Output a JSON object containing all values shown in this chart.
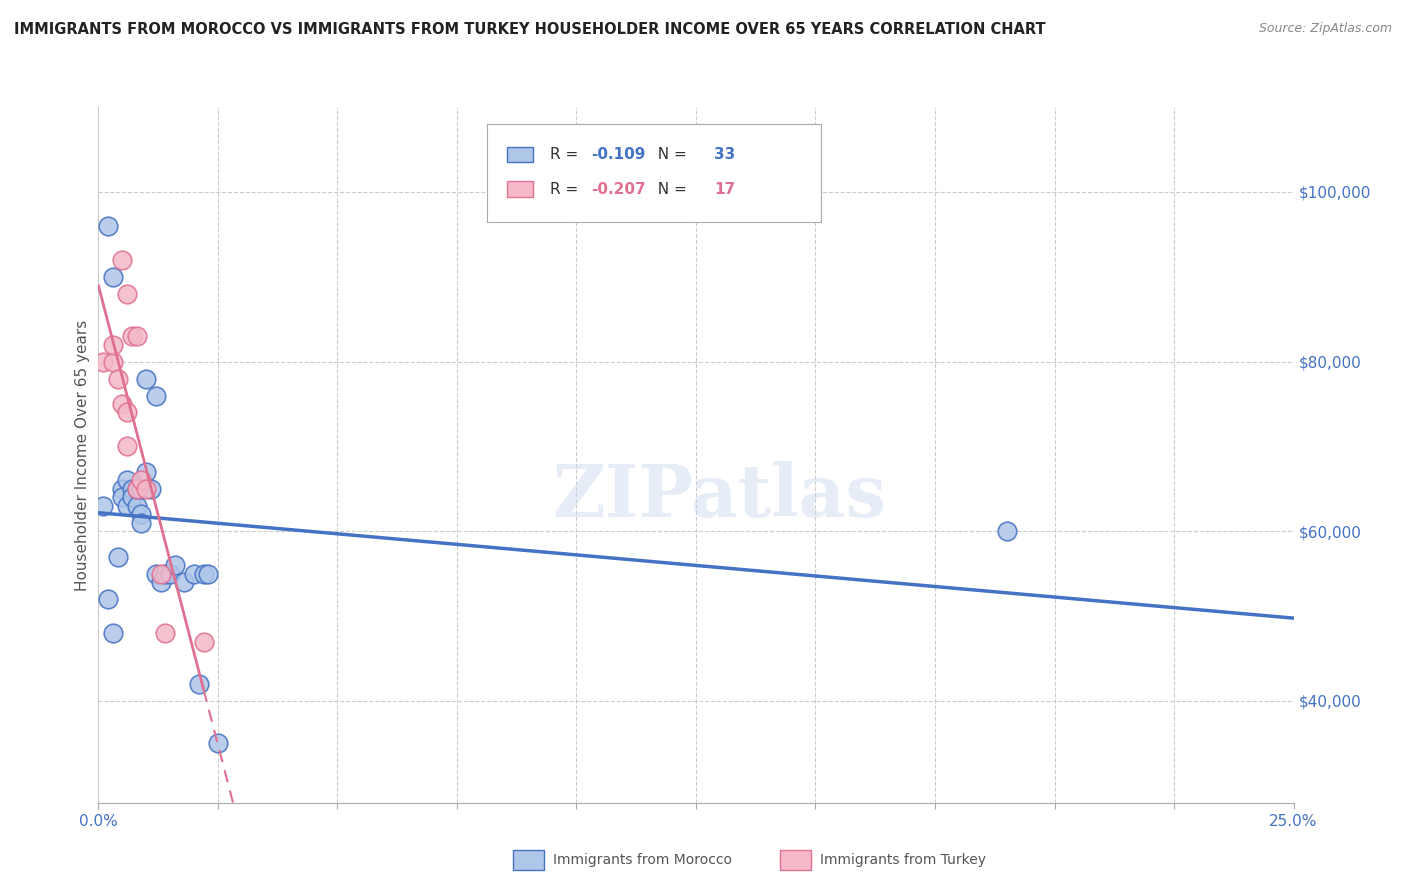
{
  "title": "IMMIGRANTS FROM MOROCCO VS IMMIGRANTS FROM TURKEY HOUSEHOLDER INCOME OVER 65 YEARS CORRELATION CHART",
  "source": "Source: ZipAtlas.com",
  "ylabel": "Householder Income Over 65 years",
  "yticks": [
    40000,
    60000,
    80000,
    100000
  ],
  "ytick_labels": [
    "$40,000",
    "$60,000",
    "$80,000",
    "$100,000"
  ],
  "xlim": [
    0.0,
    0.25
  ],
  "ylim": [
    28000,
    110000
  ],
  "legend_label1": "Immigrants from Morocco",
  "legend_label2": "Immigrants from Turkey",
  "r1": "-0.109",
  "n1": "33",
  "r2": "-0.207",
  "n2": "17",
  "color_morocco_fill": "#aec6e8",
  "color_turkey_fill": "#f4b8c8",
  "color_line_morocco": "#4472c4",
  "color_line_turkey": "#e07090",
  "watermark": "ZIPatlas",
  "morocco_x": [
    0.001,
    0.002,
    0.003,
    0.004,
    0.005,
    0.005,
    0.006,
    0.006,
    0.007,
    0.007,
    0.008,
    0.008,
    0.009,
    0.009,
    0.009,
    0.01,
    0.01,
    0.011,
    0.012,
    0.012,
    0.013,
    0.014,
    0.015,
    0.016,
    0.018,
    0.02,
    0.021,
    0.022,
    0.023,
    0.025,
    0.19,
    0.002,
    0.003
  ],
  "morocco_y": [
    63000,
    52000,
    48000,
    57000,
    65000,
    64000,
    66000,
    63000,
    65000,
    64000,
    63000,
    65000,
    65000,
    62000,
    61000,
    78000,
    67000,
    65000,
    55000,
    76000,
    54000,
    55000,
    55000,
    56000,
    54000,
    55000,
    42000,
    55000,
    55000,
    35000,
    60000,
    96000,
    90000
  ],
  "turkey_x": [
    0.001,
    0.003,
    0.003,
    0.004,
    0.005,
    0.006,
    0.006,
    0.007,
    0.008,
    0.008,
    0.009,
    0.01,
    0.013,
    0.014,
    0.022,
    0.005,
    0.006
  ],
  "turkey_y": [
    80000,
    80000,
    82000,
    78000,
    75000,
    74000,
    70000,
    83000,
    83000,
    65000,
    66000,
    65000,
    55000,
    48000,
    47000,
    92000,
    88000
  ],
  "xtick_positions": [
    0.0,
    0.025,
    0.05,
    0.075,
    0.1,
    0.125,
    0.15,
    0.175,
    0.2,
    0.225,
    0.25
  ]
}
